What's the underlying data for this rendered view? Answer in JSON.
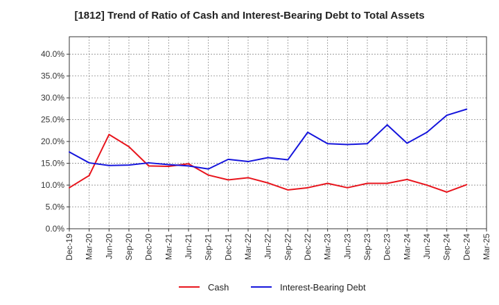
{
  "chart_data": {
    "type": "line",
    "title": "[1812]  Trend of Ratio of Cash and Interest-Bearing Debt to Total Assets",
    "xlabel": "",
    "ylabel": "",
    "x_tick_labels": [
      "Dec-19",
      "Mar-20",
      "Jun-20",
      "Sep-20",
      "Dec-20",
      "Mar-21",
      "Jun-21",
      "Sep-21",
      "Dec-21",
      "Mar-22",
      "Jun-22",
      "Sep-22",
      "Dec-22",
      "Mar-23",
      "Jun-23",
      "Sep-23",
      "Dec-23",
      "Mar-24",
      "Jun-24",
      "Sep-24",
      "Dec-24",
      "Mar-25"
    ],
    "x": [
      "Dec-19",
      "Mar-20",
      "Jun-20",
      "Sep-20",
      "Dec-20",
      "Mar-21",
      "Jun-21",
      "Sep-21",
      "Dec-21",
      "Mar-22",
      "Jun-22",
      "Sep-22",
      "Dec-22",
      "Mar-23",
      "Jun-23",
      "Sep-23",
      "Dec-23",
      "Mar-24",
      "Jun-24",
      "Sep-24",
      "Dec-24"
    ],
    "y_ticks": [
      "0.0%",
      "5.0%",
      "10.0%",
      "15.0%",
      "20.0%",
      "25.0%",
      "30.0%",
      "35.0%",
      "40.0%"
    ],
    "ylim": [
      0,
      44
    ],
    "grid": true,
    "legend_position": "bottom-center",
    "series": [
      {
        "name": "Cash",
        "color": "#e8141c",
        "values": [
          9.4,
          12.2,
          21.6,
          18.8,
          14.4,
          14.3,
          14.9,
          12.3,
          11.2,
          11.7,
          10.5,
          8.9,
          9.4,
          10.4,
          9.4,
          10.4,
          10.4,
          11.3,
          10.0,
          8.4,
          10.1
        ]
      },
      {
        "name": "Interest-Bearing Debt",
        "color": "#1414dc",
        "values": [
          17.6,
          15.1,
          14.5,
          14.6,
          15.1,
          14.7,
          14.4,
          13.7,
          15.9,
          15.4,
          16.3,
          15.8,
          22.1,
          19.5,
          19.3,
          19.5,
          23.8,
          19.6,
          22.1,
          26.0,
          27.4
        ]
      }
    ]
  }
}
